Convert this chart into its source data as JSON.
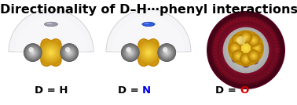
{
  "title": "Directionality of D–H⋯phenyl interactions",
  "title_fontsize": 11.5,
  "title_fontweight": "bold",
  "title_color": "#000000",
  "background_color": "#ffffff",
  "labels": [
    "D = H",
    "D = N",
    "D = O"
  ],
  "label_d_color": "#000000",
  "label_eq_color": "#000000",
  "label_elem_colors": [
    "#000000",
    "#0000ee",
    "#dd0000"
  ],
  "label_fontsize": 9.5,
  "label_fontweight": "bold",
  "figsize": [
    3.78,
    1.34
  ],
  "dpi": 100
}
